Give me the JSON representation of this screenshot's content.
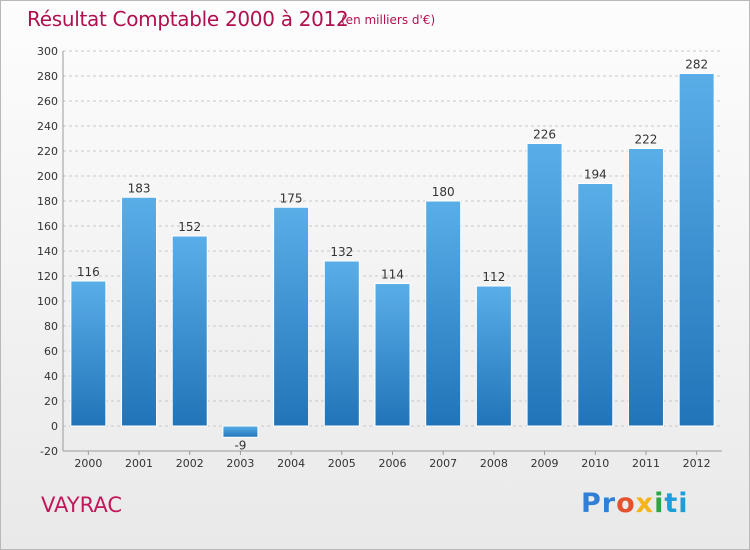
{
  "header": {
    "title": "Résultat Comptable 2000 à 2012",
    "subtitle": "(en milliers d'€)"
  },
  "footer": {
    "place": "VAYRAC",
    "logo_letters": [
      "Pr",
      "o",
      "x",
      "i",
      "ti"
    ]
  },
  "colors": {
    "title": "#b0104f",
    "bar_top": "#5aaee8",
    "bar_bottom": "#2174b8"
  },
  "chart_data": {
    "type": "bar",
    "title": "Résultat Comptable 2000 à 2012",
    "xlabel": "",
    "ylabel": "",
    "categories": [
      "2000",
      "2001",
      "2002",
      "2003",
      "2004",
      "2005",
      "2006",
      "2007",
      "2008",
      "2009",
      "2010",
      "2011",
      "2012"
    ],
    "values": [
      116,
      183,
      152,
      -9,
      175,
      132,
      114,
      180,
      112,
      226,
      194,
      222,
      282
    ],
    "ylim": [
      -20,
      300
    ],
    "yticks": [
      -20,
      0,
      20,
      40,
      60,
      80,
      100,
      120,
      140,
      160,
      180,
      200,
      220,
      240,
      260,
      280,
      300
    ],
    "grid": "horizontal dashed",
    "legend": "none"
  }
}
